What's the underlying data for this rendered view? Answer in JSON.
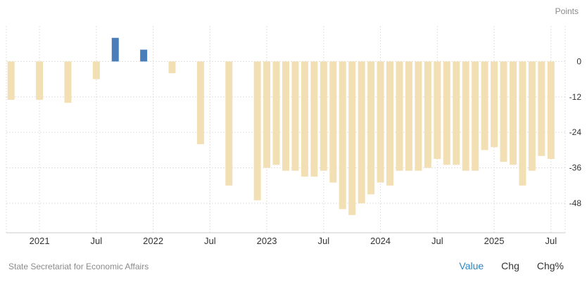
{
  "unit_label": "Points",
  "source": "State Secretariat for Economic Affairs",
  "tabs": [
    {
      "label": "Value",
      "active": true
    },
    {
      "label": "Chg",
      "active": false
    },
    {
      "label": "Chg%",
      "active": false
    }
  ],
  "colors": {
    "negative": "#f2e0b4",
    "positive": "#4a7ebb",
    "grid": "#e0e0e0",
    "axis_text": "#333333",
    "tick_text": "#777777"
  },
  "chart_data": {
    "type": "bar",
    "ylabel": "Points",
    "ylim": [
      -58,
      12
    ],
    "yticks": [
      0,
      -12,
      -24,
      -36,
      -48
    ],
    "ytick_labels": [
      "0",
      "-12",
      "-24",
      "-36",
      "-48"
    ],
    "xticks": [
      {
        "label": "2021",
        "at": "2021-01"
      },
      {
        "label": "Jul",
        "at": "2021-07"
      },
      {
        "label": "2022",
        "at": "2022-01"
      },
      {
        "label": "Jul",
        "at": "2022-07"
      },
      {
        "label": "2023",
        "at": "2023-01"
      },
      {
        "label": "Jul",
        "at": "2023-07"
      },
      {
        "label": "2024",
        "at": "2024-01"
      },
      {
        "label": "Jul",
        "at": "2024-07"
      },
      {
        "label": "2025",
        "at": "2025-01"
      },
      {
        "label": "Jul",
        "at": "2025-07"
      }
    ],
    "x_range": [
      "2020-10",
      "2025-08"
    ],
    "grid": true,
    "categories": [
      "2020-10",
      "2021-01",
      "2021-04",
      "2021-07",
      "2021-09",
      "2021-12",
      "2022-03",
      "2022-06",
      "2022-09",
      "2022-12",
      "2023-01",
      "2023-02",
      "2023-03",
      "2023-04",
      "2023-05",
      "2023-06",
      "2023-07",
      "2023-08",
      "2023-09",
      "2023-10",
      "2023-11",
      "2023-12",
      "2024-01",
      "2024-02",
      "2024-03",
      "2024-04",
      "2024-05",
      "2024-06",
      "2024-07",
      "2024-08",
      "2024-09",
      "2024-10",
      "2024-11",
      "2024-12",
      "2025-01",
      "2025-02",
      "2025-03",
      "2025-04",
      "2025-05",
      "2025-06",
      "2025-07"
    ],
    "values": [
      -13,
      -13,
      -14,
      -6,
      8,
      4,
      -4,
      -28,
      -42,
      -47,
      -36,
      -35,
      -37,
      -37,
      -39,
      -39,
      -37,
      -41,
      -50,
      -52,
      -48,
      -45,
      -41,
      -42,
      -37,
      -37,
      -37,
      -36,
      -33,
      -35,
      -35,
      -37,
      -37,
      -30,
      -29,
      -34,
      -35,
      -42,
      -37,
      -32,
      -33
    ]
  }
}
